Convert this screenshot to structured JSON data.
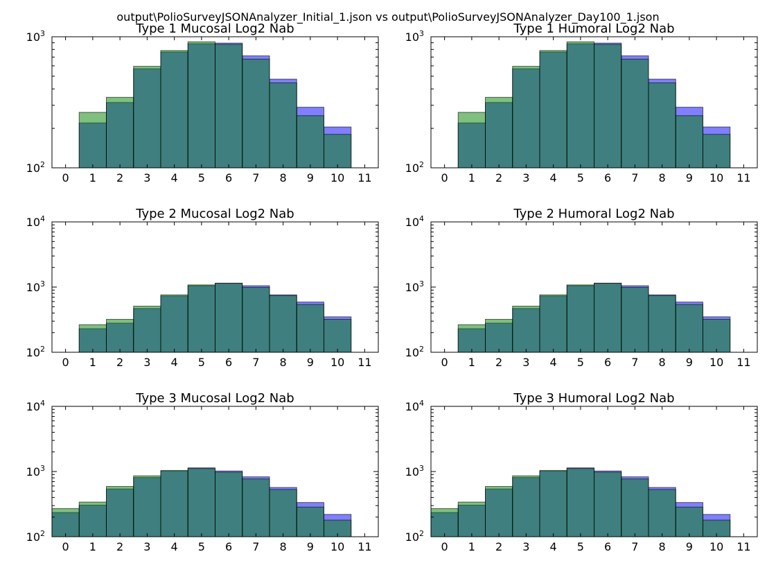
{
  "figure": {
    "suptitle": "output\\PolioSurveyJSONAnalyzer_Initial_1.json vs output\\PolioSurveyJSONAnalyzer_Day100_1.json"
  },
  "chart_data": [
    {
      "type": "bar",
      "title": "Type 1 Mucosal Log2 Nab",
      "yscale": "log",
      "ylim": [
        100,
        1000
      ],
      "xlim": [
        -0.5,
        11.5
      ],
      "xticks": [
        "0",
        "1",
        "2",
        "3",
        "4",
        "5",
        "6",
        "7",
        "8",
        "9",
        "10",
        "11"
      ],
      "yticks": [
        {
          "base": "10",
          "exp": "2",
          "value": 100
        },
        {
          "base": "10",
          "exp": "3",
          "value": 1000
        }
      ],
      "categories": [
        1,
        2,
        3,
        4,
        5,
        6,
        7,
        8,
        9,
        10
      ],
      "series": [
        {
          "color": "#0000ff",
          "alpha": 0.5,
          "values": [
            220,
            315,
            570,
            765,
            885,
            895,
            715,
            475,
            290,
            205
          ]
        },
        {
          "color": "#008000",
          "alpha": 0.5,
          "values": [
            265,
            345,
            595,
            785,
            915,
            875,
            675,
            445,
            250,
            180
          ]
        }
      ]
    },
    {
      "type": "bar",
      "title": "Type 1 Humoral Log2 Nab",
      "yscale": "log",
      "ylim": [
        100,
        1000
      ],
      "xlim": [
        -0.5,
        11.5
      ],
      "xticks": [
        "0",
        "1",
        "2",
        "3",
        "4",
        "5",
        "6",
        "7",
        "8",
        "9",
        "10",
        "11"
      ],
      "yticks": [
        {
          "base": "10",
          "exp": "2",
          "value": 100
        },
        {
          "base": "10",
          "exp": "3",
          "value": 1000
        }
      ],
      "categories": [
        1,
        2,
        3,
        4,
        5,
        6,
        7,
        8,
        9,
        10
      ],
      "series": [
        {
          "color": "#0000ff",
          "alpha": 0.5,
          "values": [
            220,
            315,
            570,
            765,
            885,
            895,
            715,
            475,
            290,
            205
          ]
        },
        {
          "color": "#008000",
          "alpha": 0.5,
          "values": [
            265,
            345,
            595,
            785,
            915,
            875,
            675,
            445,
            250,
            180
          ]
        }
      ]
    },
    {
      "type": "bar",
      "title": "Type 2 Mucosal Log2 Nab",
      "yscale": "log",
      "ylim": [
        100,
        10000
      ],
      "xlim": [
        -0.5,
        11.5
      ],
      "xticks": [
        "0",
        "1",
        "2",
        "3",
        "4",
        "5",
        "6",
        "7",
        "8",
        "9",
        "10",
        "11"
      ],
      "yticks": [
        {
          "base": "10",
          "exp": "2",
          "value": 100
        },
        {
          "base": "10",
          "exp": "3",
          "value": 1000
        },
        {
          "base": "10",
          "exp": "4",
          "value": 10000
        }
      ],
      "categories": [
        1,
        2,
        3,
        4,
        5,
        6,
        7,
        8,
        9,
        10
      ],
      "series": [
        {
          "color": "#0000ff",
          "alpha": 0.5,
          "values": [
            230,
            280,
            470,
            730,
            1050,
            1150,
            1050,
            760,
            590,
            350
          ]
        },
        {
          "color": "#008000",
          "alpha": 0.5,
          "values": [
            265,
            320,
            510,
            760,
            1080,
            1140,
            990,
            740,
            540,
            320
          ]
        }
      ]
    },
    {
      "type": "bar",
      "title": "Type 2 Humoral Log2 Nab",
      "yscale": "log",
      "ylim": [
        100,
        10000
      ],
      "xlim": [
        -0.5,
        11.5
      ],
      "xticks": [
        "0",
        "1",
        "2",
        "3",
        "4",
        "5",
        "6",
        "7",
        "8",
        "9",
        "10",
        "11"
      ],
      "yticks": [
        {
          "base": "10",
          "exp": "2",
          "value": 100
        },
        {
          "base": "10",
          "exp": "3",
          "value": 1000
        },
        {
          "base": "10",
          "exp": "4",
          "value": 10000
        }
      ],
      "categories": [
        1,
        2,
        3,
        4,
        5,
        6,
        7,
        8,
        9,
        10
      ],
      "series": [
        {
          "color": "#0000ff",
          "alpha": 0.5,
          "values": [
            230,
            280,
            470,
            730,
            1050,
            1150,
            1050,
            760,
            590,
            350
          ]
        },
        {
          "color": "#008000",
          "alpha": 0.5,
          "values": [
            265,
            320,
            510,
            760,
            1080,
            1140,
            990,
            740,
            540,
            320
          ]
        }
      ]
    },
    {
      "type": "bar",
      "title": "Type 3 Mucosal Log2 Nab",
      "yscale": "log",
      "ylim": [
        100,
        10000
      ],
      "xlim": [
        -0.5,
        11.5
      ],
      "xticks": [
        "0",
        "1",
        "2",
        "3",
        "4",
        "5",
        "6",
        "7",
        "8",
        "9",
        "10",
        "11"
      ],
      "yticks": [
        {
          "base": "10",
          "exp": "2",
          "value": 100
        },
        {
          "base": "10",
          "exp": "3",
          "value": 1000
        },
        {
          "base": "10",
          "exp": "4",
          "value": 10000
        }
      ],
      "categories": [
        0,
        1,
        2,
        3,
        4,
        5,
        6,
        7,
        8,
        9,
        10
      ],
      "series": [
        {
          "color": "#0000ff",
          "alpha": 0.5,
          "values": [
            235,
            305,
            540,
            810,
            1020,
            1140,
            1020,
            830,
            570,
            335,
            220
          ]
        },
        {
          "color": "#008000",
          "alpha": 0.5,
          "values": [
            270,
            340,
            590,
            860,
            1040,
            1110,
            980,
            770,
            530,
            285,
            180
          ]
        }
      ]
    },
    {
      "type": "bar",
      "title": "Type 3 Humoral Log2 Nab",
      "yscale": "log",
      "ylim": [
        100,
        10000
      ],
      "xlim": [
        -0.5,
        11.5
      ],
      "xticks": [
        "0",
        "1",
        "2",
        "3",
        "4",
        "5",
        "6",
        "7",
        "8",
        "9",
        "10",
        "11"
      ],
      "yticks": [
        {
          "base": "10",
          "exp": "2",
          "value": 100
        },
        {
          "base": "10",
          "exp": "3",
          "value": 1000
        },
        {
          "base": "10",
          "exp": "4",
          "value": 10000
        }
      ],
      "categories": [
        0,
        1,
        2,
        3,
        4,
        5,
        6,
        7,
        8,
        9,
        10
      ],
      "series": [
        {
          "color": "#0000ff",
          "alpha": 0.5,
          "values": [
            235,
            305,
            540,
            810,
            1020,
            1140,
            1020,
            830,
            570,
            335,
            220
          ]
        },
        {
          "color": "#008000",
          "alpha": 0.5,
          "values": [
            270,
            340,
            590,
            860,
            1040,
            1110,
            980,
            770,
            530,
            285,
            180
          ]
        }
      ]
    }
  ]
}
